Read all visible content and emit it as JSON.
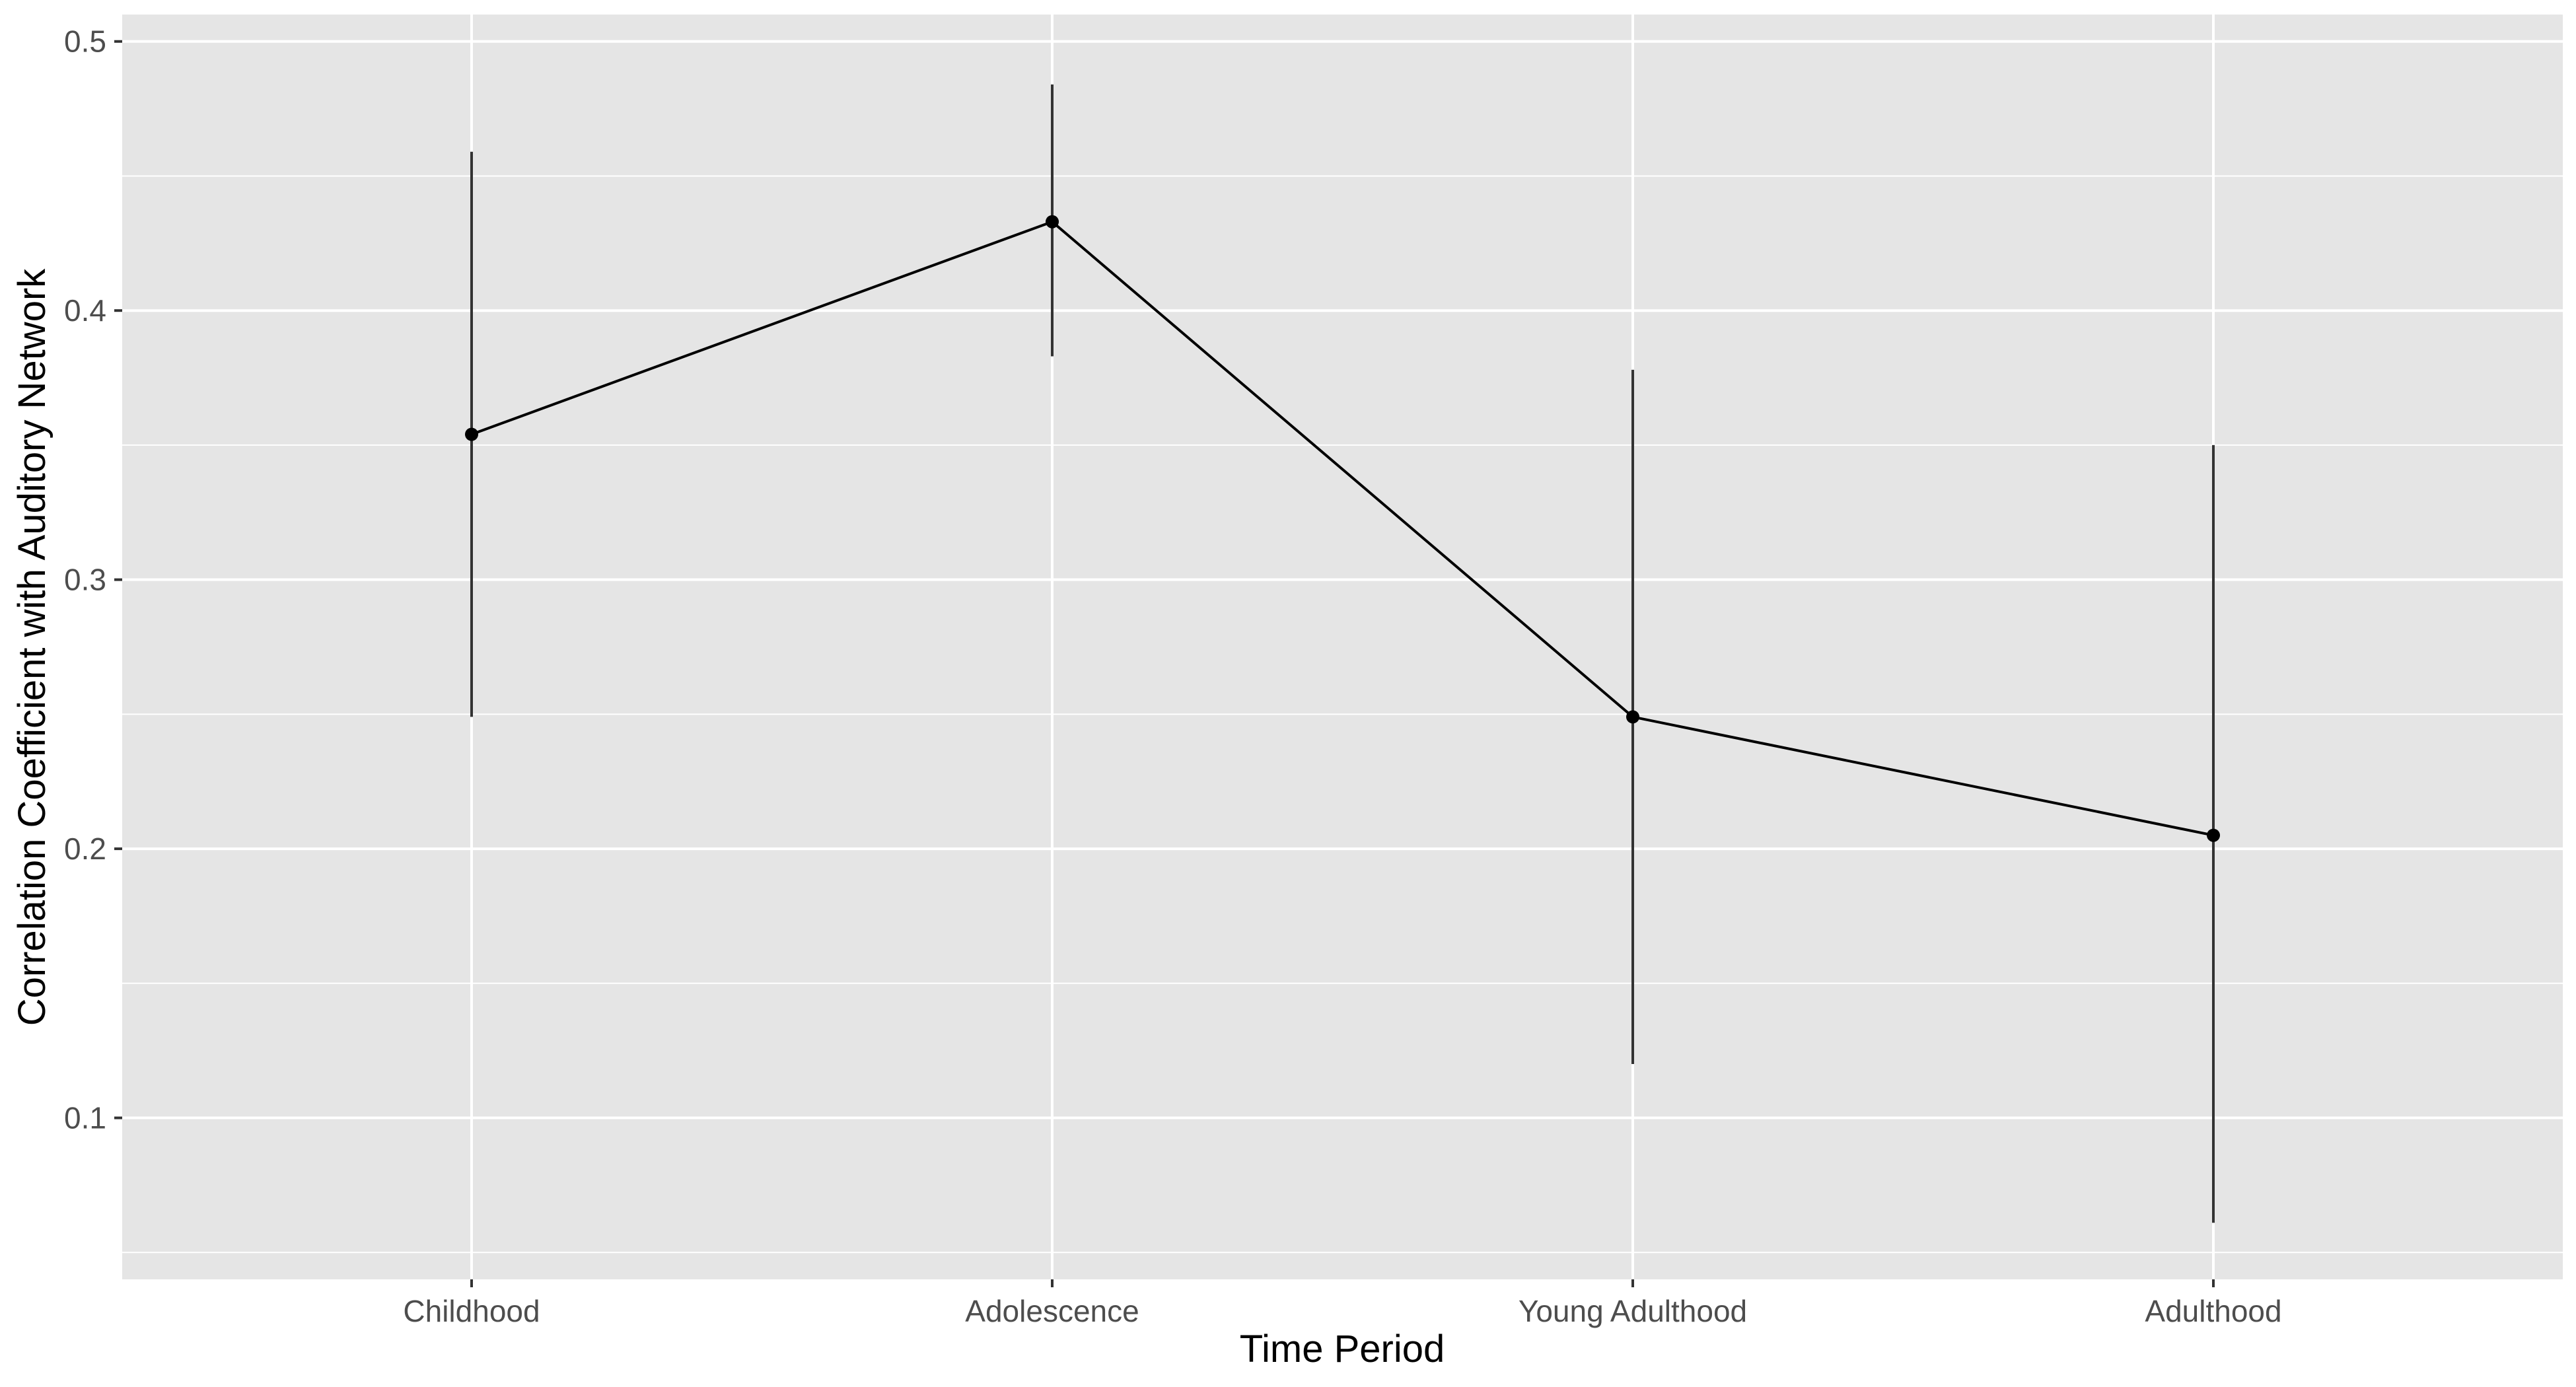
{
  "chart_data": {
    "type": "line",
    "title": "",
    "xlabel": "Time Period",
    "ylabel": "Correlation Coefficient with Auditory Network",
    "categories": [
      "Childhood",
      "Adolescence",
      "Young Adulthood",
      "Adulthood"
    ],
    "series": [
      {
        "values": [
          0.354,
          0.433,
          0.249,
          0.205
        ],
        "error_low": [
          0.249,
          0.383,
          0.12,
          0.061
        ],
        "error_high": [
          0.459,
          0.484,
          0.378,
          0.35
        ]
      }
    ],
    "ylim": [
      0.04,
      0.51
    ],
    "yticks": [
      0.1,
      0.2,
      0.3,
      0.4,
      0.5
    ],
    "ytick_labels": [
      "0.1",
      "0.2",
      "0.3",
      "0.4",
      "0.5"
    ],
    "grid": true,
    "legend": "none",
    "colors": {
      "panel_background": "#e5e5e5",
      "grid": "#ffffff",
      "line": "#000000",
      "errorbar": "#333333",
      "tick_text": "#4d4d4d"
    }
  }
}
